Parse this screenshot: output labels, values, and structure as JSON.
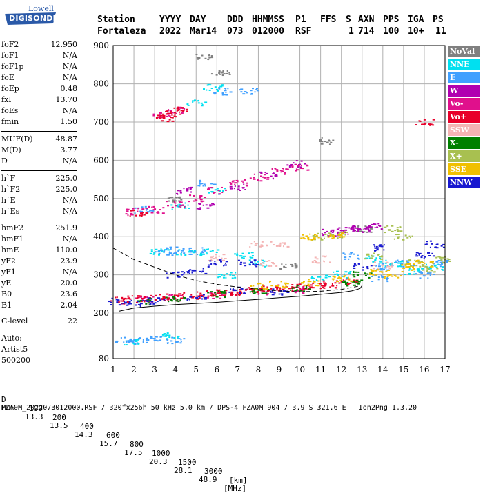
{
  "logo": {
    "line1": "Lowell",
    "line2": "DIGISONDE"
  },
  "header": {
    "labels": [
      "Station",
      "YYYY",
      "DAY",
      "DDD",
      "HHMMSS",
      "P1",
      "FFS",
      "S",
      "AXN",
      "PPS",
      "IGA",
      "PS"
    ],
    "values": [
      "Fortaleza",
      "2022",
      "Mar14",
      "073",
      "012000",
      "RSF",
      "",
      "1",
      "714",
      "100",
      "10+",
      "11"
    ]
  },
  "params": [
    {
      "label": "foF2",
      "value": "12.950"
    },
    {
      "label": "foF1",
      "value": "N/A"
    },
    {
      "label": "foF1p",
      "value": "N/A"
    },
    {
      "label": "foE",
      "value": "N/A"
    },
    {
      "label": "foEp",
      "value": "0.48"
    },
    {
      "label": "fxI",
      "value": "13.70"
    },
    {
      "label": "foEs",
      "value": "N/A"
    },
    {
      "label": "fmin",
      "value": "1.50"
    },
    {
      "label": "MUF(D)",
      "value": "48.87"
    },
    {
      "label": "M(D)",
      "value": "3.77"
    },
    {
      "label": "D",
      "value": "N/A"
    },
    {
      "label": "h`F",
      "value": "225.0"
    },
    {
      "label": "h`F2",
      "value": "225.0"
    },
    {
      "label": "h`E",
      "value": "N/A"
    },
    {
      "label": "h`Es",
      "value": "N/A"
    },
    {
      "label": "hmF2",
      "value": "251.9"
    },
    {
      "label": "hmF1",
      "value": "N/A"
    },
    {
      "label": "hmE",
      "value": "110.0"
    },
    {
      "label": "yF2",
      "value": "23.9"
    },
    {
      "label": "yF1",
      "value": "N/A"
    },
    {
      "label": "yE",
      "value": "20.0"
    },
    {
      "label": "B0",
      "value": "23.6"
    },
    {
      "label": "B1",
      "value": "2.04"
    },
    {
      "label": "C-level",
      "value": "22"
    }
  ],
  "auto": {
    "line1": "Auto:",
    "line2": "Artist5",
    "line3": "500200"
  },
  "legend": [
    {
      "label": "NoVal",
      "color": "#808080"
    },
    {
      "label": "NNE",
      "color": "#00e0f0"
    },
    {
      "label": "E",
      "color": "#40a0ff"
    },
    {
      "label": "W",
      "color": "#b000b0"
    },
    {
      "label": "Vo-",
      "color": "#e0108c"
    },
    {
      "label": "Vo+",
      "color": "#e8002a"
    },
    {
      "label": "SSW",
      "color": "#f4b4b4"
    },
    {
      "label": "X-",
      "color": "#008000"
    },
    {
      "label": "X+",
      "color": "#a8c050"
    },
    {
      "label": "SSE",
      "color": "#f0c000"
    },
    {
      "label": "NNW",
      "color": "#1818d0"
    }
  ],
  "chart_data": {
    "type": "scatter",
    "xlim": [
      1,
      17
    ],
    "ylim": [
      80,
      900
    ],
    "x_ticks": [
      1,
      2,
      3,
      4,
      5,
      6,
      7,
      8,
      9,
      10,
      11,
      12,
      13,
      14,
      15,
      16,
      17
    ],
    "y_ticks": [
      80,
      200,
      300,
      400,
      500,
      600,
      700,
      800,
      900
    ],
    "grid": true,
    "legend_placement": "right",
    "series": [
      {
        "name": "NoVal",
        "points": [
          [
            5.3,
            870
          ],
          [
            6.2,
            830
          ],
          [
            9.5,
            320
          ],
          [
            4.0,
            500
          ],
          [
            11.2,
            650
          ],
          [
            13.0,
            420
          ]
        ]
      },
      {
        "name": "NNE",
        "points": [
          [
            3.2,
            360
          ],
          [
            4.5,
            360
          ],
          [
            5.6,
            360
          ],
          [
            6.5,
            300
          ],
          [
            7.3,
            350
          ],
          [
            8.0,
            330
          ],
          [
            5.0,
            750
          ],
          [
            5.8,
            790
          ],
          [
            13.5,
            340
          ],
          [
            14.5,
            330
          ],
          [
            15.5,
            310
          ],
          [
            16.5,
            320
          ],
          [
            2.0,
            125
          ],
          [
            3.8,
            140
          ],
          [
            11.0,
            290
          ],
          [
            12.0,
            300
          ],
          [
            4.2,
            480
          ],
          [
            6.0,
            520
          ]
        ]
      },
      {
        "name": "E",
        "points": [
          [
            1.5,
            128
          ],
          [
            2.2,
            126
          ],
          [
            3.0,
            130
          ],
          [
            4.0,
            128
          ],
          [
            3.5,
            360
          ],
          [
            4.0,
            365
          ],
          [
            5.0,
            362
          ],
          [
            14.0,
            320
          ],
          [
            15.0,
            330
          ],
          [
            16.0,
            300
          ],
          [
            16.8,
            330
          ],
          [
            2.5,
            470
          ],
          [
            5.5,
            540
          ],
          [
            6.2,
            780
          ],
          [
            7.5,
            780
          ],
          [
            12.5,
            350
          ],
          [
            13.8,
            290
          ]
        ]
      },
      {
        "name": "W",
        "points": [
          [
            11.5,
            410
          ],
          [
            12.0,
            415
          ],
          [
            12.5,
            420
          ],
          [
            13.0,
            420
          ],
          [
            13.5,
            425
          ],
          [
            5.5,
            480
          ],
          [
            7.0,
            530
          ],
          [
            8.5,
            560
          ],
          [
            9.8,
            590
          ],
          [
            4.5,
            520
          ]
        ]
      },
      {
        "name": "Vo-",
        "points": [
          [
            2.0,
            465
          ],
          [
            3.0,
            470
          ],
          [
            4.0,
            485
          ],
          [
            5.0,
            500
          ],
          [
            6.0,
            520
          ],
          [
            7.0,
            540
          ],
          [
            8.0,
            555
          ],
          [
            9.0,
            570
          ],
          [
            10.0,
            580
          ],
          [
            3.3,
            715
          ],
          [
            4.0,
            730
          ],
          [
            2.5,
            235
          ],
          [
            4.0,
            240
          ],
          [
            6.0,
            245
          ],
          [
            8.0,
            255
          ],
          [
            10.0,
            260
          ]
        ]
      },
      {
        "name": "Vo+",
        "points": [
          [
            1.3,
            233
          ],
          [
            1.8,
            236
          ],
          [
            2.5,
            238
          ],
          [
            3.2,
            240
          ],
          [
            4.0,
            242
          ],
          [
            4.8,
            245
          ],
          [
            5.5,
            250
          ],
          [
            6.3,
            252
          ],
          [
            7.0,
            255
          ],
          [
            7.8,
            258
          ],
          [
            8.5,
            262
          ],
          [
            9.3,
            265
          ],
          [
            10.0,
            268
          ],
          [
            10.8,
            272
          ],
          [
            11.5,
            275
          ],
          [
            12.3,
            280
          ],
          [
            2.2,
            460
          ],
          [
            3.5,
            710
          ],
          [
            3.8,
            720
          ],
          [
            4.2,
            730
          ],
          [
            16.0,
            700
          ]
        ]
      },
      {
        "name": "SSW",
        "points": [
          [
            6.0,
            345
          ],
          [
            8.0,
            380
          ],
          [
            9.0,
            380
          ],
          [
            8.5,
            330
          ],
          [
            11.0,
            340
          ],
          [
            14.0,
            325
          ]
        ]
      },
      {
        "name": "X-",
        "points": [
          [
            2.5,
            230
          ],
          [
            4.0,
            238
          ],
          [
            6.0,
            250
          ],
          [
            8.0,
            260
          ],
          [
            10.0,
            265
          ],
          [
            12.5,
            278
          ],
          [
            13.0,
            300
          ]
        ]
      },
      {
        "name": "X+",
        "points": [
          [
            11.0,
            400
          ],
          [
            12.0,
            405
          ],
          [
            14.5,
            420
          ],
          [
            15.0,
            400
          ],
          [
            15.5,
            330
          ],
          [
            16.2,
            315
          ],
          [
            16.8,
            340
          ],
          [
            13.5,
            350
          ]
        ]
      },
      {
        "name": "SSE",
        "points": [
          [
            8.0,
            270
          ],
          [
            9.0,
            275
          ],
          [
            10.5,
            280
          ],
          [
            12.0,
            290
          ],
          [
            13.8,
            305
          ],
          [
            14.5,
            300
          ],
          [
            15.2,
            320
          ],
          [
            16.0,
            330
          ],
          [
            10.5,
            400
          ],
          [
            11.8,
            404
          ]
        ]
      },
      {
        "name": "NNW",
        "points": [
          [
            1.2,
            230
          ],
          [
            2.0,
            225
          ],
          [
            3.0,
            232
          ],
          [
            5.0,
            240
          ],
          [
            7.0,
            260
          ],
          [
            9.0,
            255
          ],
          [
            4.0,
            300
          ],
          [
            5.0,
            310
          ],
          [
            6.0,
            330
          ],
          [
            7.5,
            330
          ],
          [
            16.0,
            350
          ],
          [
            16.5,
            380
          ],
          [
            14.0,
            370
          ],
          [
            13.0,
            320
          ]
        ]
      }
    ],
    "trace_dashed": {
      "points": [
        [
          1,
          370
        ],
        [
          1.5,
          355
        ],
        [
          2,
          340
        ],
        [
          3,
          320
        ],
        [
          4,
          300
        ],
        [
          5,
          285
        ],
        [
          6,
          275
        ],
        [
          7,
          268
        ],
        [
          8,
          262
        ],
        [
          9,
          258
        ],
        [
          10,
          256
        ],
        [
          11,
          257
        ],
        [
          12,
          262
        ],
        [
          12.8,
          270
        ]
      ]
    },
    "trace_solid": {
      "points": [
        [
          1.3,
          205
        ],
        [
          2,
          213
        ],
        [
          3,
          218
        ],
        [
          4,
          222
        ],
        [
          5,
          225
        ],
        [
          6,
          228
        ],
        [
          7,
          232
        ],
        [
          8,
          236
        ],
        [
          9,
          240
        ],
        [
          10,
          244
        ],
        [
          11,
          249
        ],
        [
          12,
          254
        ],
        [
          12.5,
          258
        ],
        [
          12.9,
          264
        ],
        [
          13.0,
          272
        ]
      ]
    }
  },
  "bottom": {
    "d_label": "D",
    "d_values": [
      "100",
      "200",
      "400",
      "600",
      "800",
      "1000",
      "1500",
      "3000"
    ],
    "d_unit": "[km]",
    "muf_label": "MUF",
    "muf_values": [
      "13.3",
      "13.5",
      "14.3",
      "15.7",
      "17.5",
      "20.3",
      "28.1",
      "48.9"
    ],
    "muf_unit": "[MHz]",
    "footer": "FZA0M_2022073012000.RSF / 320fx256h 50 kHz 5.0 km / DPS-4 FZA0M 904 / 3.9 S 321.6 E   Ion2Png 1.3.20"
  }
}
